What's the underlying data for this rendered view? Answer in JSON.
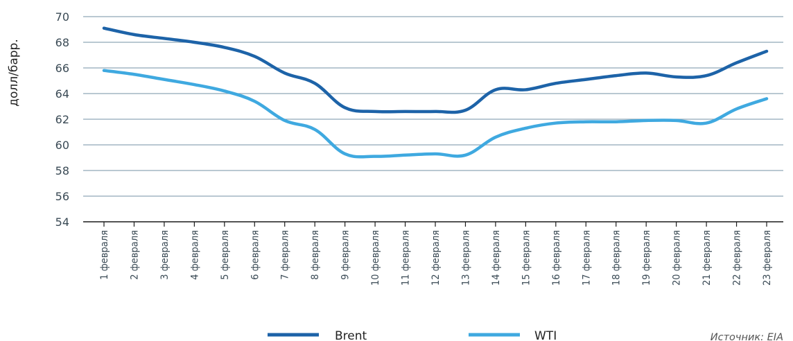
{
  "chart_data": {
    "type": "line",
    "ylabel": "долл/барр.",
    "ylim": [
      54,
      70
    ],
    "yticks": [
      54,
      56,
      58,
      60,
      62,
      64,
      66,
      68,
      70
    ],
    "grid": true,
    "legend_position": "bottom",
    "categories": [
      "1 февраля",
      "2 февраля",
      "3 февраля",
      "4 февраля",
      "5 февраля",
      "6 февраля",
      "7 февраля",
      "8 февраля",
      "9 февраля",
      "10 февраля",
      "11 февраля",
      "12 февраля",
      "13 февраля",
      "14 февраля",
      "15 февраля",
      "16 февраля",
      "17 февраля",
      "18 февраля",
      "19 февраля",
      "20 февраля",
      "21 февраля",
      "22 февраля",
      "23 февраля"
    ],
    "series": [
      {
        "name": "Brent",
        "color": "#1d63a8",
        "values": [
          69.1,
          68.6,
          68.3,
          68.0,
          67.6,
          66.9,
          65.6,
          64.8,
          62.9,
          62.6,
          62.6,
          62.6,
          62.7,
          64.3,
          64.3,
          64.8,
          65.1,
          65.4,
          65.6,
          65.3,
          65.4,
          66.4,
          67.3
        ]
      },
      {
        "name": "WTI",
        "color": "#3fa9e0",
        "values": [
          65.8,
          65.5,
          65.1,
          64.7,
          64.2,
          63.4,
          61.9,
          61.2,
          59.3,
          59.1,
          59.2,
          59.3,
          59.2,
          60.6,
          61.3,
          61.7,
          61.8,
          61.8,
          61.9,
          61.9,
          61.7,
          62.8,
          63.6
        ]
      }
    ],
    "source_note": "Источник: EIA"
  }
}
